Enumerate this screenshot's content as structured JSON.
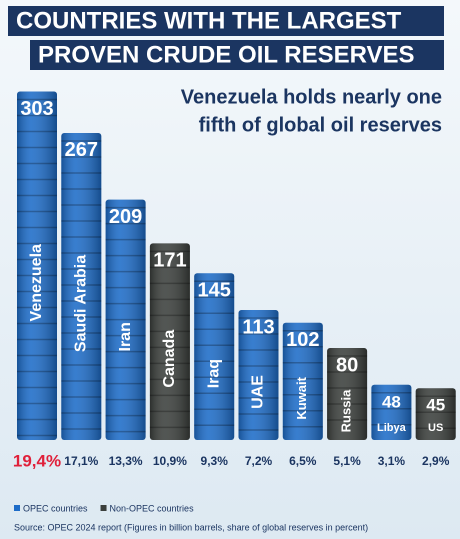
{
  "chart_data": {
    "type": "bar",
    "title": [
      "COUNTRIES WITH THE LARGEST",
      "PROVEN CRUDE OIL RESERVES"
    ],
    "subtitle": [
      "Venezuela holds nearly one",
      "fifth of global oil reserves"
    ],
    "categories": [
      "Venezuela",
      "Saudi Arabia",
      "Iran",
      "Canada",
      "Iraq",
      "UAE",
      "Kuwait",
      "Russia",
      "Libya",
      "US"
    ],
    "series": [
      {
        "name": "OPEC countries",
        "color": "#1d6cc8",
        "values": [
          303,
          267,
          209,
          null,
          145,
          113,
          102,
          null,
          48,
          null
        ]
      },
      {
        "name": "Non-OPEC countries",
        "color": "#3b3f3c",
        "values": [
          null,
          null,
          null,
          171,
          null,
          null,
          null,
          80,
          null,
          45
        ]
      }
    ],
    "shares": {
      "values": [
        19.4,
        17.1,
        13.3,
        10.9,
        9.3,
        7.2,
        6.5,
        5.1,
        3.1,
        2.9
      ],
      "value_labels": [
        "19,4%",
        "17,1%",
        "13,3%",
        "10,9%",
        "9,3%",
        "7,2%",
        "6,5%",
        "5,1%",
        "3,1%",
        "2,9%"
      ]
    },
    "source": "Source: OPEC 2024 report (Figures in billion barrels, share of global reserves in percent)"
  }
}
